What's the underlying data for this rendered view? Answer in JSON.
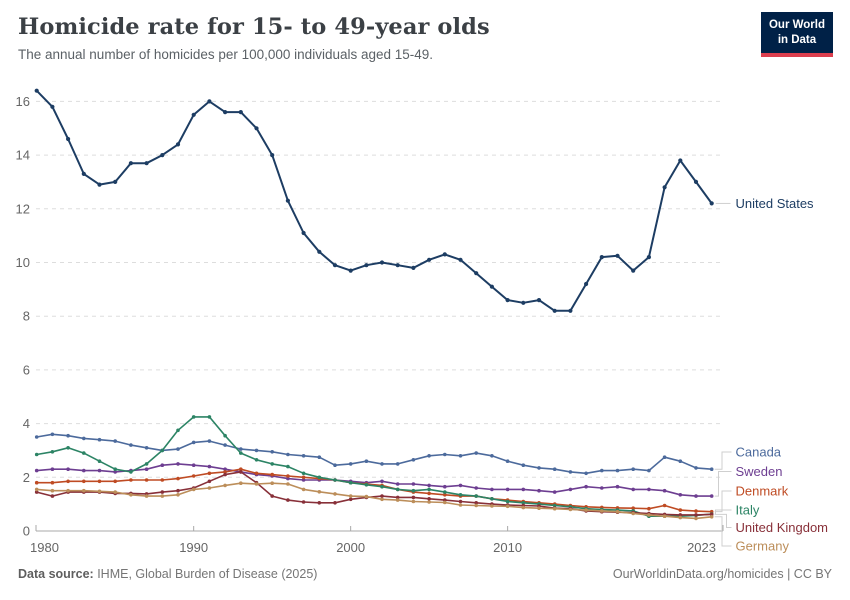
{
  "header": {
    "title": "Homicide rate for 15- to 49-year olds",
    "subtitle": "The annual number of homicides per 100,000 individuals aged 15-49."
  },
  "logo": {
    "line1": "Our World",
    "line2": "in Data",
    "bg_color": "#002147",
    "accent_color": "#dc3e4e"
  },
  "footer": {
    "source_label": "Data source:",
    "source_value": " IHME, Global Burden of Disease (2025)",
    "credit": "OurWorldinData.org/homicides | CC BY"
  },
  "chart_data": {
    "type": "line",
    "title": "Homicide rate for 15- to 49-year olds",
    "subtitle": "The annual number of homicides per 100,000 individuals aged 15-49.",
    "grid": "horizontal-dashed",
    "legend_position": "right-end-labels",
    "y_ticks": [
      0,
      2,
      4,
      6,
      8,
      10,
      12,
      14,
      16
    ],
    "x_ticks": [
      1980,
      1990,
      2000,
      2010,
      2023
    ],
    "y_range": [
      0,
      16.4
    ],
    "years": [
      1980,
      1981,
      1982,
      1983,
      1984,
      1985,
      1986,
      1987,
      1988,
      1989,
      1990,
      1991,
      1992,
      1993,
      1994,
      1995,
      1996,
      1997,
      1998,
      1999,
      2000,
      2001,
      2002,
      2003,
      2004,
      2005,
      2006,
      2007,
      2008,
      2009,
      2010,
      2011,
      2012,
      2013,
      2014,
      2015,
      2016,
      2017,
      2018,
      2019,
      2020,
      2021,
      2022,
      2023
    ],
    "series": [
      {
        "name": "United States",
        "color": "#1d3d63",
        "values": [
          16.4,
          15.8,
          14.6,
          13.3,
          12.9,
          13.0,
          13.7,
          13.7,
          14.0,
          14.4,
          15.5,
          16.0,
          15.6,
          15.6,
          15.0,
          14.0,
          12.3,
          11.1,
          10.4,
          9.9,
          9.7,
          9.9,
          10.0,
          9.9,
          9.8,
          10.1,
          10.3,
          10.1,
          9.6,
          9.1,
          8.6,
          8.5,
          8.6,
          8.2,
          8.2,
          9.2,
          10.2,
          10.25,
          9.7,
          10.2,
          12.8,
          13.8,
          13.0,
          12.2
        ]
      },
      {
        "name": "Canada",
        "color": "#4c6a9c",
        "values": [
          3.5,
          3.6,
          3.55,
          3.45,
          3.4,
          3.35,
          3.2,
          3.1,
          3.0,
          3.05,
          3.3,
          3.35,
          3.2,
          3.05,
          3.0,
          2.95,
          2.85,
          2.8,
          2.75,
          2.45,
          2.5,
          2.6,
          2.5,
          2.5,
          2.65,
          2.8,
          2.85,
          2.8,
          2.9,
          2.8,
          2.6,
          2.45,
          2.35,
          2.3,
          2.2,
          2.15,
          2.25,
          2.25,
          2.3,
          2.25,
          2.75,
          2.6,
          2.35,
          2.3
        ]
      },
      {
        "name": "Sweden",
        "color": "#6d3e91",
        "values": [
          2.25,
          2.3,
          2.3,
          2.25,
          2.25,
          2.2,
          2.25,
          2.3,
          2.45,
          2.5,
          2.45,
          2.4,
          2.3,
          2.2,
          2.1,
          2.05,
          1.95,
          1.9,
          1.9,
          1.9,
          1.85,
          1.8,
          1.85,
          1.75,
          1.75,
          1.7,
          1.65,
          1.7,
          1.6,
          1.55,
          1.55,
          1.55,
          1.5,
          1.45,
          1.55,
          1.65,
          1.6,
          1.65,
          1.55,
          1.55,
          1.5,
          1.35,
          1.3,
          1.3
        ]
      },
      {
        "name": "Denmark",
        "color": "#bf4b23",
        "values": [
          1.8,
          1.8,
          1.85,
          1.85,
          1.85,
          1.85,
          1.9,
          1.9,
          1.9,
          1.95,
          2.05,
          2.15,
          2.2,
          2.3,
          2.15,
          2.1,
          2.05,
          2.0,
          1.95,
          1.9,
          1.8,
          1.75,
          1.7,
          1.55,
          1.45,
          1.4,
          1.35,
          1.3,
          1.3,
          1.2,
          1.15,
          1.1,
          1.05,
          1.0,
          0.95,
          0.9,
          0.88,
          0.86,
          0.85,
          0.83,
          0.95,
          0.78,
          0.74,
          0.72
        ]
      },
      {
        "name": "Italy",
        "color": "#2c8465",
        "values": [
          2.85,
          2.95,
          3.1,
          2.9,
          2.6,
          2.3,
          2.2,
          2.5,
          3.0,
          3.75,
          4.25,
          4.25,
          3.55,
          2.9,
          2.65,
          2.5,
          2.4,
          2.15,
          2.0,
          1.9,
          1.8,
          1.72,
          1.65,
          1.55,
          1.5,
          1.55,
          1.45,
          1.35,
          1.3,
          1.2,
          1.1,
          1.05,
          1.0,
          0.95,
          0.9,
          0.83,
          0.8,
          0.78,
          0.75,
          0.55,
          0.55,
          0.55,
          0.58,
          0.63
        ]
      },
      {
        "name": "United Kingdom",
        "color": "#883039",
        "values": [
          1.45,
          1.3,
          1.45,
          1.45,
          1.45,
          1.4,
          1.4,
          1.38,
          1.45,
          1.5,
          1.6,
          1.85,
          2.1,
          2.2,
          1.8,
          1.3,
          1.15,
          1.08,
          1.05,
          1.05,
          1.18,
          1.25,
          1.3,
          1.25,
          1.25,
          1.2,
          1.15,
          1.1,
          1.05,
          1.0,
          0.97,
          0.95,
          0.93,
          0.85,
          0.83,
          0.75,
          0.72,
          0.7,
          0.68,
          0.65,
          0.62,
          0.6,
          0.6,
          0.62
        ]
      },
      {
        "name": "Germany",
        "color": "#bc8e5a",
        "values": [
          1.55,
          1.5,
          1.5,
          1.5,
          1.48,
          1.45,
          1.35,
          1.3,
          1.3,
          1.35,
          1.55,
          1.6,
          1.7,
          1.78,
          1.75,
          1.78,
          1.75,
          1.55,
          1.46,
          1.38,
          1.3,
          1.28,
          1.18,
          1.15,
          1.1,
          1.08,
          1.06,
          0.97,
          0.95,
          0.93,
          0.92,
          0.87,
          0.85,
          0.83,
          0.8,
          0.78,
          0.75,
          0.72,
          0.65,
          0.6,
          0.55,
          0.5,
          0.47,
          0.53
        ]
      }
    ]
  }
}
